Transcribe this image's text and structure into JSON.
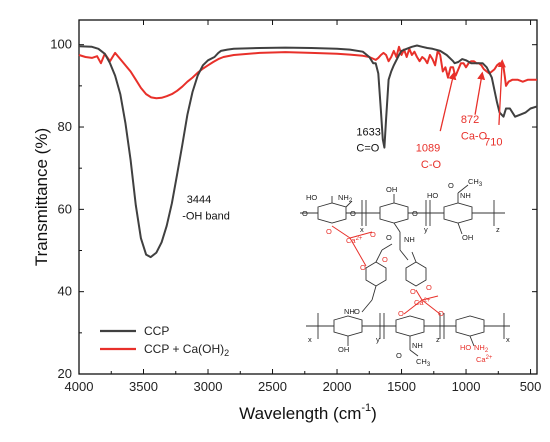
{
  "chart_data": {
    "type": "line",
    "title": "",
    "xlabel": "Wavelength (cm",
    "xlabel_sup": "-1",
    "xlabel_end": ")",
    "ylabel": "Transmittance (%)",
    "xlim": [
      4000,
      450
    ],
    "ylim": [
      20,
      106
    ],
    "x_ticks": [
      4000,
      3500,
      3000,
      2500,
      2000,
      1500,
      1000,
      500
    ],
    "y_ticks": [
      20,
      40,
      60,
      80,
      100
    ],
    "grid": false,
    "legend_position": "bottom-left",
    "series": [
      {
        "name": "CCP",
        "color": "#404040",
        "x": [
          4000,
          3900,
          3850,
          3800,
          3760,
          3720,
          3680,
          3640,
          3600,
          3560,
          3520,
          3480,
          3444,
          3400,
          3360,
          3320,
          3280,
          3240,
          3200,
          3160,
          3120,
          3080,
          3040,
          3000,
          2950,
          2920,
          2900,
          2850,
          2800,
          2600,
          2400,
          2200,
          2000,
          1900,
          1800,
          1750,
          1720,
          1700,
          1680,
          1660,
          1645,
          1633,
          1620,
          1600,
          1580,
          1560,
          1520,
          1500,
          1460,
          1420,
          1380,
          1340,
          1300,
          1260,
          1200,
          1150,
          1100,
          1089,
          1060,
          1030,
          1000,
          960,
          900,
          872,
          840,
          800,
          760,
          740,
          710,
          690,
          660,
          620,
          580,
          540,
          500,
          450
        ],
        "y": [
          99.6,
          99.5,
          99.0,
          97.8,
          95.5,
          92.5,
          88.0,
          81.0,
          72.0,
          61.0,
          53.0,
          49.0,
          48.4,
          49.5,
          52.0,
          56.0,
          61.5,
          68.5,
          75.5,
          83.0,
          88.5,
          92.5,
          95.0,
          96.2,
          97.0,
          98.0,
          98.5,
          98.8,
          99.0,
          99.2,
          99.3,
          99.2,
          99.0,
          98.8,
          98.3,
          97.0,
          95.5,
          95.5,
          93.0,
          84.0,
          77.0,
          75.0,
          82.0,
          91.5,
          93.5,
          95.0,
          97.5,
          98.5,
          99.0,
          99.5,
          99.8,
          99.5,
          99.2,
          99.0,
          98.5,
          97.5,
          96.0,
          95.5,
          95.8,
          96.5,
          96.2,
          95.5,
          95.5,
          95.5,
          94.5,
          92.0,
          86.0,
          83.5,
          82.5,
          84.5,
          84.5,
          82.5,
          83.0,
          83.5,
          84.5,
          85.0
        ]
      },
      {
        "name": "CCP + Ca(OH)",
        "name_sub": "2",
        "color": "#e8302a",
        "x": [
          4000,
          3950,
          3900,
          3860,
          3830,
          3800,
          3760,
          3720,
          3680,
          3640,
          3600,
          3560,
          3520,
          3480,
          3440,
          3400,
          3360,
          3320,
          3280,
          3240,
          3200,
          3160,
          3120,
          3080,
          3040,
          3000,
          2960,
          2920,
          2880,
          2800,
          2600,
          2400,
          2200,
          2000,
          1900,
          1800,
          1750,
          1700,
          1680,
          1660,
          1640,
          1620,
          1600,
          1580,
          1560,
          1540,
          1520,
          1500,
          1480,
          1460,
          1440,
          1420,
          1400,
          1380,
          1360,
          1340,
          1320,
          1300,
          1280,
          1260,
          1240,
          1220,
          1200,
          1180,
          1160,
          1140,
          1120,
          1100,
          1089,
          1080,
          1060,
          1040,
          1020,
          1000,
          980,
          960,
          940,
          920,
          900,
          880,
          872,
          860,
          840,
          820,
          800,
          780,
          760,
          740,
          725,
          710,
          700,
          690,
          670,
          640,
          600,
          560,
          520,
          480,
          450
        ],
        "y": [
          97.5,
          97.0,
          96.8,
          97.2,
          95.5,
          97.8,
          96.0,
          98.0,
          96.5,
          95.0,
          93.5,
          91.5,
          89.5,
          88.0,
          87.2,
          87.0,
          87.1,
          87.5,
          88.0,
          88.8,
          89.8,
          91.0,
          92.0,
          93.2,
          94.2,
          95.0,
          95.8,
          96.5,
          97.0,
          97.5,
          98.0,
          98.2,
          98.0,
          97.8,
          97.6,
          97.3,
          97.0,
          96.3,
          96.8,
          97.5,
          98.0,
          97.5,
          96.0,
          97.0,
          98.5,
          97.0,
          99.5,
          97.5,
          98.8,
          97.0,
          99.0,
          97.5,
          98.3,
          97.0,
          96.0,
          97.0,
          96.5,
          95.5,
          97.5,
          96.5,
          95.0,
          98.5,
          97.5,
          93.5,
          94.5,
          92.0,
          94.5,
          94.5,
          93.0,
          92.5,
          94.0,
          95.5,
          95.5,
          94.5,
          95.5,
          96.0,
          96.0,
          95.5,
          95.5,
          95.0,
          94.5,
          94.0,
          93.5,
          93.0,
          93.5,
          94.0,
          95.0,
          95.5,
          95.2,
          94.5,
          92.5,
          90.0,
          91.0,
          91.5,
          91.5,
          91.0,
          91.5,
          91.5,
          91.5
        ]
      }
    ],
    "annotations": [
      {
        "id": "a3444-num",
        "text": "3444",
        "color": "#111111",
        "x": 3165,
        "y": 61.5
      },
      {
        "id": "a3444-lbl",
        "text": "-OH band",
        "color": "#111111",
        "x": 3200,
        "y": 57.5
      },
      {
        "id": "a1633-num",
        "text": "1633",
        "color": "#111111",
        "x": 1850,
        "y": 78.0
      },
      {
        "id": "a1633-lbl",
        "text": "C=O",
        "color": "#111111",
        "x": 1850,
        "y": 74.0
      },
      {
        "id": "a1089-num",
        "text": "1089",
        "color": "#e8302a",
        "x": 1390,
        "y": 74.0
      },
      {
        "id": "a1089-lbl",
        "text": "C-O",
        "color": "#e8302a",
        "x": 1350,
        "y": 70.0
      },
      {
        "id": "a872-num",
        "text": "872",
        "color": "#e8302a",
        "x": 1040,
        "y": 81.0
      },
      {
        "id": "a872-lbl",
        "text": "Ca-O",
        "color": "#e8302a",
        "x": 1040,
        "y": 77.0
      },
      {
        "id": "a710-num",
        "text": "710",
        "color": "#e8302a",
        "x": 860,
        "y": 75.5
      }
    ],
    "arrows": [
      {
        "id": "arrow-1089",
        "from": [
          1200,
          79.0
        ],
        "to": [
          1095,
          93.0
        ]
      },
      {
        "id": "arrow-872",
        "from": [
          930,
          83.0
        ],
        "to": [
          875,
          93.0
        ]
      },
      {
        "id": "arrow-710",
        "from": [
          745,
          80.5
        ],
        "to": [
          720,
          96.0
        ]
      }
    ],
    "structure_labels": {
      "ho": "HO",
      "nh2": "NH",
      "nh2_sub": "2",
      "oh": "OH",
      "o": "O",
      "nh": "NH",
      "ch3": "CH",
      "ch3_sub": "3",
      "ca": "Ca",
      "ca_sup": "2+",
      "x": "x",
      "y": "y",
      "z": "z"
    }
  }
}
